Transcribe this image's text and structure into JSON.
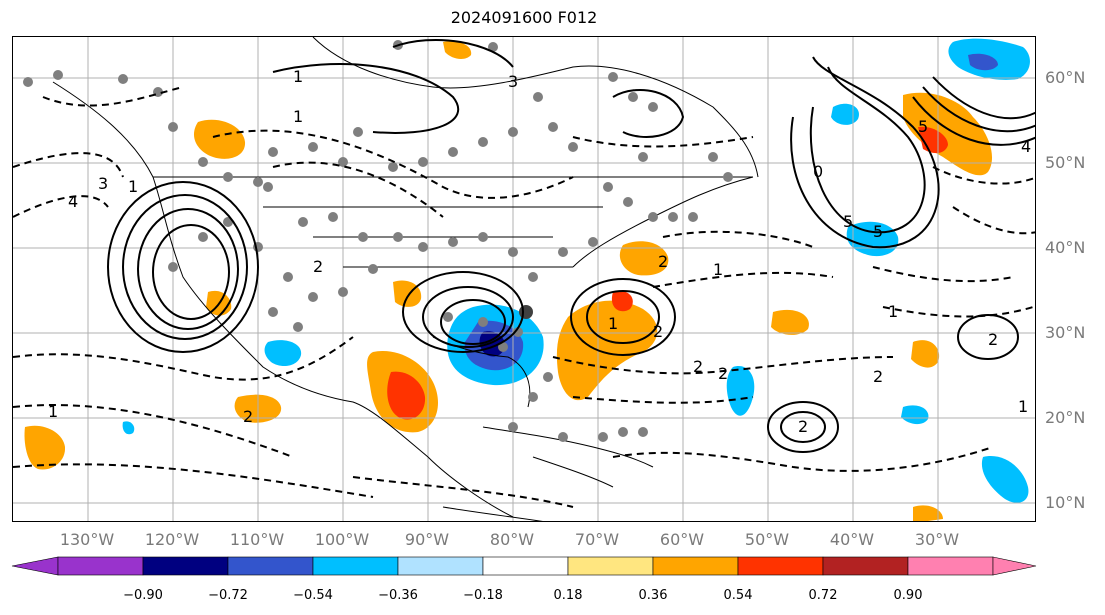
{
  "title": "2024091600 F012",
  "lon_labels": [
    "130°W",
    "120°W",
    "110°W",
    "100°W",
    "90°W",
    "80°W",
    "70°W",
    "60°W",
    "50°W",
    "40°W",
    "30°W"
  ],
  "lat_labels": [
    "60°N",
    "50°N",
    "40°N",
    "30°N",
    "20°N",
    "10°N"
  ],
  "colorbar": {
    "ticks": [
      "−0.90",
      "−0.72",
      "−0.54",
      "−0.36",
      "−0.18",
      "0.18",
      "0.36",
      "0.54",
      "0.72",
      "0.90"
    ],
    "colors": [
      "#9933cc",
      "#000080",
      "#3355cc",
      "#00bfff",
      "#b0e2ff",
      "#ffffff",
      "#ffe680",
      "#ffa500",
      "#ff3300",
      "#b22222",
      "#ff80b0"
    ]
  },
  "contour_labels": [
    "1",
    "2",
    "3",
    "4",
    "5",
    "1",
    "2",
    "2",
    "1",
    "2",
    "5",
    "1",
    "2",
    "1",
    "2",
    "2",
    "1",
    "3",
    "2",
    "4",
    "5",
    "1",
    "2",
    "1",
    "0"
  ]
}
